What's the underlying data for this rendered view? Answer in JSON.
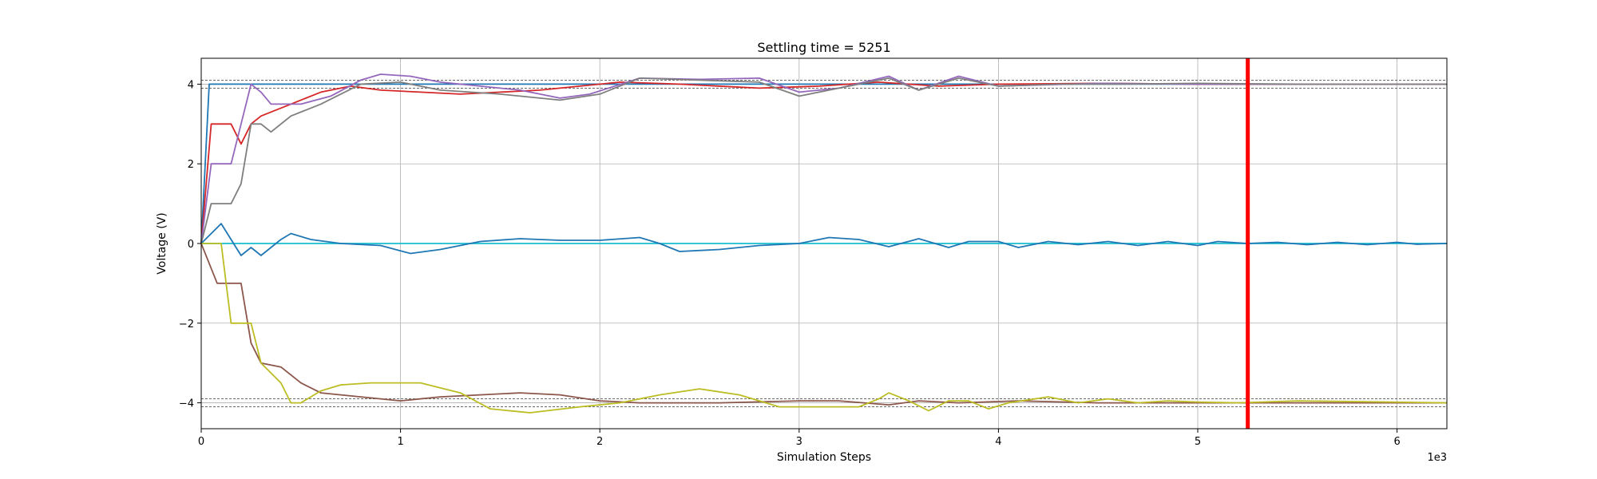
{
  "chart_data": {
    "type": "line",
    "title": "Settling time = 5251",
    "xlabel": "Simulation Steps",
    "ylabel": "Voltage (V)",
    "x_multiplier_label": "1e3",
    "xlim": [
      0,
      6250
    ],
    "ylim": [
      -4.65,
      4.65
    ],
    "x_ticks": [
      0,
      1000,
      2000,
      3000,
      4000,
      5000,
      6000
    ],
    "x_tick_labels": [
      "0",
      "1",
      "2",
      "3",
      "4",
      "5",
      "6"
    ],
    "y_ticks": [
      -4,
      -2,
      0,
      2,
      4
    ],
    "y_tick_labels": [
      "−4",
      "−2",
      "0",
      "2",
      "4"
    ],
    "grid": true,
    "settling_time": 5251,
    "settling_line_color": "#ff0000",
    "tolerance_bands": [
      4.1,
      3.9,
      -3.9,
      -4.1
    ],
    "series": [
      {
        "color": "#1f77b4",
        "points": [
          [
            0,
            0
          ],
          [
            40,
            4
          ],
          [
            6250,
            4
          ]
        ]
      },
      {
        "color": "#d62728",
        "points": [
          [
            0,
            0
          ],
          [
            50,
            3
          ],
          [
            150,
            3
          ],
          [
            200,
            2.5
          ],
          [
            250,
            3
          ],
          [
            300,
            3.2
          ],
          [
            450,
            3.5
          ],
          [
            600,
            3.8
          ],
          [
            750,
            3.95
          ],
          [
            900,
            3.85
          ],
          [
            1100,
            3.8
          ],
          [
            1300,
            3.75
          ],
          [
            1500,
            3.8
          ],
          [
            1700,
            3.85
          ],
          [
            1900,
            3.95
          ],
          [
            2100,
            4.05
          ],
          [
            2400,
            4.0
          ],
          [
            2800,
            3.9
          ],
          [
            3100,
            3.95
          ],
          [
            3400,
            4.05
          ],
          [
            3700,
            3.95
          ],
          [
            4000,
            4.0
          ],
          [
            4500,
            4.02
          ],
          [
            5000,
            4.0
          ],
          [
            5500,
            4.0
          ],
          [
            6250,
            4.0
          ]
        ]
      },
      {
        "color": "#9467bd",
        "points": [
          [
            0,
            0
          ],
          [
            50,
            2
          ],
          [
            150,
            2
          ],
          [
            200,
            3
          ],
          [
            250,
            4
          ],
          [
            300,
            3.8
          ],
          [
            350,
            3.5
          ],
          [
            500,
            3.5
          ],
          [
            650,
            3.7
          ],
          [
            800,
            4.1
          ],
          [
            900,
            4.25
          ],
          [
            1050,
            4.2
          ],
          [
            1200,
            4.05
          ],
          [
            1400,
            3.95
          ],
          [
            1600,
            3.85
          ],
          [
            1800,
            3.65
          ],
          [
            1950,
            3.75
          ],
          [
            2200,
            4.15
          ],
          [
            2500,
            4.12
          ],
          [
            2800,
            4.15
          ],
          [
            3000,
            3.8
          ],
          [
            3200,
            3.9
          ],
          [
            3450,
            4.2
          ],
          [
            3600,
            3.85
          ],
          [
            3800,
            4.2
          ],
          [
            4000,
            3.95
          ],
          [
            4500,
            4.02
          ],
          [
            5000,
            4.0
          ],
          [
            6250,
            4.0
          ]
        ]
      },
      {
        "color": "#7f7f7f",
        "points": [
          [
            0,
            0
          ],
          [
            50,
            1
          ],
          [
            150,
            1
          ],
          [
            200,
            1.5
          ],
          [
            250,
            3
          ],
          [
            300,
            3
          ],
          [
            350,
            2.8
          ],
          [
            450,
            3.2
          ],
          [
            600,
            3.5
          ],
          [
            800,
            4.0
          ],
          [
            1000,
            4.05
          ],
          [
            1200,
            3.85
          ],
          [
            1500,
            3.75
          ],
          [
            1800,
            3.6
          ],
          [
            2000,
            3.75
          ],
          [
            2200,
            4.15
          ],
          [
            2500,
            4.1
          ],
          [
            2800,
            4.05
          ],
          [
            3000,
            3.7
          ],
          [
            3200,
            3.9
          ],
          [
            3450,
            4.15
          ],
          [
            3600,
            3.85
          ],
          [
            3800,
            4.15
          ],
          [
            4000,
            3.95
          ],
          [
            4300,
            4.0
          ],
          [
            4600,
            4.0
          ],
          [
            5000,
            4.02
          ],
          [
            5500,
            4.0
          ],
          [
            6250,
            4.0
          ]
        ]
      },
      {
        "color": "#17becf",
        "points": [
          [
            0,
            0
          ],
          [
            6250,
            0
          ]
        ]
      },
      {
        "color": "#1f77b4",
        "points": [
          [
            0,
            0
          ],
          [
            100,
            0.5
          ],
          [
            150,
            0.1
          ],
          [
            200,
            -0.3
          ],
          [
            250,
            -0.1
          ],
          [
            300,
            -0.3
          ],
          [
            400,
            0.1
          ],
          [
            450,
            0.25
          ],
          [
            550,
            0.1
          ],
          [
            700,
            0.0
          ],
          [
            900,
            -0.05
          ],
          [
            1050,
            -0.25
          ],
          [
            1200,
            -0.15
          ],
          [
            1400,
            0.05
          ],
          [
            1600,
            0.12
          ],
          [
            1800,
            0.08
          ],
          [
            2000,
            0.08
          ],
          [
            2200,
            0.15
          ],
          [
            2300,
            0.0
          ],
          [
            2400,
            -0.2
          ],
          [
            2600,
            -0.15
          ],
          [
            2800,
            -0.05
          ],
          [
            3000,
            0.0
          ],
          [
            3150,
            0.15
          ],
          [
            3300,
            0.1
          ],
          [
            3450,
            -0.08
          ],
          [
            3600,
            0.12
          ],
          [
            3750,
            -0.1
          ],
          [
            3850,
            0.05
          ],
          [
            4000,
            0.05
          ],
          [
            4100,
            -0.1
          ],
          [
            4250,
            0.05
          ],
          [
            4400,
            -0.03
          ],
          [
            4550,
            0.05
          ],
          [
            4700,
            -0.05
          ],
          [
            4850,
            0.05
          ],
          [
            5000,
            -0.05
          ],
          [
            5100,
            0.05
          ],
          [
            5250,
            0.0
          ],
          [
            5400,
            0.03
          ],
          [
            5550,
            -0.03
          ],
          [
            5700,
            0.03
          ],
          [
            5850,
            -0.03
          ],
          [
            6000,
            0.03
          ],
          [
            6100,
            -0.02
          ],
          [
            6250,
            0.0
          ]
        ]
      },
      {
        "color": "#8c564b",
        "points": [
          [
            0,
            0
          ],
          [
            80,
            -1
          ],
          [
            200,
            -1
          ],
          [
            250,
            -2.5
          ],
          [
            300,
            -3
          ],
          [
            400,
            -3.1
          ],
          [
            500,
            -3.5
          ],
          [
            600,
            -3.75
          ],
          [
            800,
            -3.85
          ],
          [
            1000,
            -3.95
          ],
          [
            1200,
            -3.85
          ],
          [
            1400,
            -3.8
          ],
          [
            1600,
            -3.75
          ],
          [
            1800,
            -3.8
          ],
          [
            2000,
            -3.95
          ],
          [
            2200,
            -4.0
          ],
          [
            2600,
            -4.0
          ],
          [
            3000,
            -3.95
          ],
          [
            3200,
            -3.95
          ],
          [
            3450,
            -4.05
          ],
          [
            3600,
            -3.95
          ],
          [
            3800,
            -4.0
          ],
          [
            4100,
            -3.95
          ],
          [
            4500,
            -4.0
          ],
          [
            5000,
            -4.0
          ],
          [
            6250,
            -4.0
          ]
        ]
      },
      {
        "color": "#bcbd22",
        "points": [
          [
            0,
            0
          ],
          [
            100,
            0
          ],
          [
            150,
            -2
          ],
          [
            250,
            -2
          ],
          [
            300,
            -3
          ],
          [
            400,
            -3.5
          ],
          [
            450,
            -4.0
          ],
          [
            500,
            -4.0
          ],
          [
            600,
            -3.7
          ],
          [
            700,
            -3.55
          ],
          [
            850,
            -3.5
          ],
          [
            1100,
            -3.5
          ],
          [
            1300,
            -3.75
          ],
          [
            1450,
            -4.15
          ],
          [
            1650,
            -4.25
          ],
          [
            1900,
            -4.1
          ],
          [
            2100,
            -4.0
          ],
          [
            2300,
            -3.8
          ],
          [
            2500,
            -3.65
          ],
          [
            2700,
            -3.8
          ],
          [
            2900,
            -4.1
          ],
          [
            3100,
            -4.1
          ],
          [
            3300,
            -4.1
          ],
          [
            3400,
            -3.9
          ],
          [
            3450,
            -3.75
          ],
          [
            3550,
            -3.95
          ],
          [
            3650,
            -4.2
          ],
          [
            3750,
            -3.95
          ],
          [
            3850,
            -3.95
          ],
          [
            3950,
            -4.15
          ],
          [
            4050,
            -4.0
          ],
          [
            4250,
            -3.85
          ],
          [
            4400,
            -4.0
          ],
          [
            4550,
            -3.9
          ],
          [
            4700,
            -4.0
          ],
          [
            4850,
            -3.95
          ],
          [
            5000,
            -3.98
          ],
          [
            5200,
            -4.0
          ],
          [
            5500,
            -3.95
          ],
          [
            6250,
            -4.0
          ]
        ]
      }
    ]
  }
}
